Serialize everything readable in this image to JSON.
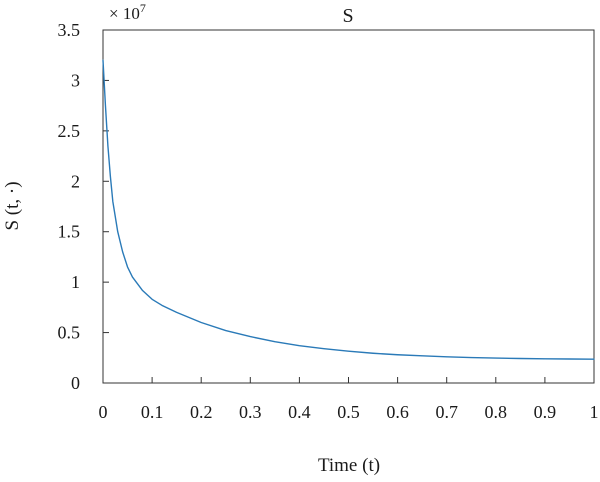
{
  "chart_data": {
    "type": "line",
    "title": "S",
    "xlabel": "Time (t)",
    "ylabel": "S (t, ·)",
    "y_multiplier": {
      "prefix": "× 10",
      "exponent": "7"
    },
    "xlim": [
      0,
      1
    ],
    "ylim": [
      0,
      3.5
    ],
    "x_ticks": [
      0,
      0.1,
      0.2,
      0.3,
      0.4,
      0.5,
      0.6,
      0.7,
      0.8,
      0.9,
      1
    ],
    "x_tick_labels": [
      "0",
      "0.1",
      "0.2",
      "0.3",
      "0.4",
      "0.5",
      "0.6",
      "0.7",
      "0.8",
      "0.9",
      "1"
    ],
    "y_ticks": [
      0,
      0.5,
      1,
      1.5,
      2,
      2.5,
      3,
      3.5
    ],
    "y_tick_labels": [
      "0",
      "0.5",
      "1",
      "1.5",
      "2",
      "2.5",
      "3",
      "3.5"
    ],
    "grid": false,
    "series": [
      {
        "color": "#2a7ab8",
        "x": [
          0,
          0.005,
          0.01,
          0.015,
          0.02,
          0.03,
          0.04,
          0.05,
          0.06,
          0.08,
          0.1,
          0.12,
          0.15,
          0.2,
          0.25,
          0.3,
          0.35,
          0.4,
          0.45,
          0.5,
          0.55,
          0.6,
          0.65,
          0.7,
          0.75,
          0.8,
          0.85,
          0.9,
          0.95,
          1.0
        ],
        "y": [
          3.2,
          2.75,
          2.35,
          2.05,
          1.8,
          1.5,
          1.3,
          1.15,
          1.05,
          0.92,
          0.83,
          0.77,
          0.7,
          0.6,
          0.52,
          0.46,
          0.41,
          0.37,
          0.34,
          0.315,
          0.295,
          0.28,
          0.27,
          0.26,
          0.252,
          0.247,
          0.243,
          0.24,
          0.238,
          0.236
        ]
      }
    ]
  }
}
